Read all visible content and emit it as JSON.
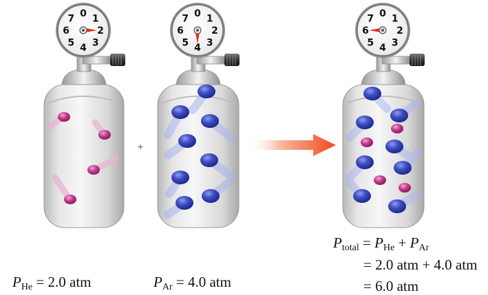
{
  "gauges": [
    {
      "id": "he",
      "numbers": [
        "0",
        "1",
        "2",
        "3",
        "4",
        "5",
        "6",
        "7"
      ],
      "reading": 2
    },
    {
      "id": "ar",
      "numbers": [
        "0",
        "1",
        "2",
        "3",
        "4",
        "5",
        "6",
        "7"
      ],
      "reading": 4
    },
    {
      "id": "mix",
      "numbers": [
        "0",
        "1",
        "2",
        "3",
        "4",
        "5",
        "6",
        "7"
      ],
      "reading": 6
    }
  ],
  "plus_sign": "+",
  "labels": {
    "he": {
      "var": "P",
      "sub": "He",
      "rest": " = 2.0 atm"
    },
    "ar": {
      "var": "P",
      "sub": "Ar",
      "rest": " = 4.0 atm"
    },
    "total": {
      "lhs_var": "P",
      "lhs_sub": "total",
      "eq": " = ",
      "t1_var": "P",
      "t1_sub": "He",
      "plus": " + ",
      "t2_var": "P",
      "t2_sub": "Ar",
      "line2": "= 2.0 atm + 4.0 atm",
      "line3": "= 6.0 atm"
    }
  },
  "colors": {
    "helium": "#c23c8c",
    "argon": "#3344b0",
    "arrow": "#f25a2c",
    "needle": "#e02a1a",
    "cylinder": "#dcdcdc"
  }
}
